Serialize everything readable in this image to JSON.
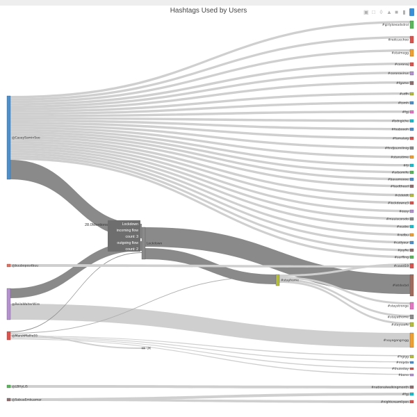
{
  "title": "Hashtags Used by Users",
  "modebar": {
    "icons": [
      "camera-icon",
      "zoom-icon",
      "pan-icon",
      "box-select-icon",
      "lasso-icon",
      "home-icon",
      "plotly-logo-icon"
    ]
  },
  "tooltip": {
    "name": "Lockdown",
    "incoming": "incoming flow count: 3",
    "outgoing": "outgoing flow count: 2",
    "tag": "28.0Mentions"
  },
  "chart_data": {
    "type": "sankey",
    "title": "Hashtags Used by Users",
    "left_nodes": [
      {
        "label": "@CaseySaminSoo",
        "color": "#4f8fca",
        "y0": 138,
        "y1": 258
      },
      {
        "label": "@buuboposdbuu",
        "color": "#e07060",
        "y0": 380,
        "y1": 384
      },
      {
        "label": "@ReilaWalterWire",
        "color": "#b392cf",
        "y0": 415,
        "y1": 460
      },
      {
        "label": "@MarshMallie55",
        "color": "#d9534f",
        "y0": 477,
        "y1": 489
      },
      {
        "label": "@LBHyLiS",
        "color": "#5bb75b",
        "y0": 554,
        "y1": 558
      },
      {
        "label": "@SabuaEmkuamar",
        "color": "#8e6e6e",
        "y0": 573,
        "y1": 577
      }
    ],
    "middle_nodes": [
      {
        "label": "Lockdown",
        "color": "#8a8a8a",
        "x": 204,
        "y0": 327,
        "y1": 373
      },
      {
        "label": "#stayhome",
        "color": "#b5bd3c",
        "x": 397,
        "y0": 395,
        "y1": 411
      },
      {
        "label": "UK",
        "color": "#999999",
        "x": 204,
        "y0": 500,
        "y1": 502
      }
    ],
    "right_nodes": [
      {
        "label": "#girlykeeadsdrol",
        "color": "#5bb75b",
        "y0": 30,
        "y1": 41
      },
      {
        "label": "#redcucchoo",
        "color": "#d9534f",
        "y0": 52,
        "y1": 62
      },
      {
        "label": "#staimegg",
        "color": "#f0a030",
        "y0": 71,
        "y1": 81
      },
      {
        "label": "#coronaj",
        "color": "#d9534f",
        "y0": 90,
        "y1": 95
      },
      {
        "label": "#coronavirus",
        "color": "#b392cf",
        "y0": 103,
        "y1": 108
      },
      {
        "label": "#fgame",
        "color": "#8e6e6e",
        "y0": 117,
        "y1": 122
      },
      {
        "label": "#sdfh",
        "color": "#b5bd3c",
        "y0": 133,
        "y1": 137
      },
      {
        "label": "#tomh",
        "color": "#4f8fca",
        "y0": 146,
        "y1": 150
      },
      {
        "label": "#fgj",
        "color": "#e377c2",
        "y0": 159,
        "y1": 163
      },
      {
        "label": "#bdngiche",
        "color": "#17becf",
        "y0": 172,
        "y1": 176
      },
      {
        "label": "#foaboooh",
        "color": "#4f8fca",
        "y0": 184,
        "y1": 188
      },
      {
        "label": "#famalaig",
        "color": "#d9534f",
        "y0": 197,
        "y1": 201
      },
      {
        "label": "#findjournilinig",
        "color": "#8c8c8c",
        "y0": 211,
        "y1": 215
      },
      {
        "label": "#stanstime",
        "color": "#f0a030",
        "y0": 224,
        "y1": 228
      },
      {
        "label": "#fji",
        "color": "#17becf",
        "y0": 236,
        "y1": 240
      },
      {
        "label": "#adsomife",
        "color": "#5bb75b",
        "y0": 246,
        "y1": 250
      },
      {
        "label": "#bavamoooe",
        "color": "#4f8fca",
        "y0": 256,
        "y1": 260
      },
      {
        "label": "#fasdtheed",
        "color": "#8e6e6e",
        "y0": 266,
        "y1": 270
      },
      {
        "label": "#ctdotdt",
        "color": "#b5bd3c",
        "y0": 279,
        "y1": 283
      },
      {
        "label": "#lockdownz3",
        "color": "#d9534f",
        "y0": 290,
        "y1": 294
      },
      {
        "label": "#ossy",
        "color": "#b392cf",
        "y0": 302,
        "y1": 306
      },
      {
        "label": "#muuiscorsdo",
        "color": "#8c8c8c",
        "y0": 313,
        "y1": 317
      },
      {
        "label": "#ousbe",
        "color": "#17becf",
        "y0": 324,
        "y1": 328
      },
      {
        "label": "#redbu",
        "color": "#f0a030",
        "y0": 336,
        "y1": 340
      },
      {
        "label": "#cstlyour",
        "color": "#4f8fca",
        "y0": 347,
        "y1": 351
      },
      {
        "label": "#joyfie",
        "color": "#8e6e6e",
        "y0": 358,
        "y1": 362
      },
      {
        "label": "#surfling",
        "color": "#5bb75b",
        "y0": 368,
        "y1": 372
      },
      {
        "label": "#covid19",
        "color": "#d9534f",
        "y0": 379,
        "y1": 386
      },
      {
        "label": "#lotdocbd",
        "color": "#a06b5c",
        "y0": 395,
        "y1": 426
      },
      {
        "label": "#staystronge",
        "color": "#e377c2",
        "y0": 435,
        "y1": 445
      },
      {
        "label": "#stayathome",
        "color": "#8c8c8c",
        "y0": 453,
        "y1": 459
      },
      {
        "label": "#stayssafe",
        "color": "#b5bd3c",
        "y0": 464,
        "y1": 470
      },
      {
        "label": "#noyegangrngg",
        "color": "#f0a030",
        "y0": 479,
        "y1": 500
      },
      {
        "label": "#hgigg",
        "color": "#b5bd3c",
        "y0": 511,
        "y1": 515
      },
      {
        "label": "#rnipda",
        "color": "#4f8fca",
        "y0": 520,
        "y1": 523
      },
      {
        "label": "#thuisstay",
        "color": "#d9534f",
        "y0": 529,
        "y1": 532
      },
      {
        "label": "#bono",
        "color": "#b392cf",
        "y0": 538,
        "y1": 541
      },
      {
        "label": "#nationalwalkingmonth",
        "color": "#8e6e6e",
        "y0": 555,
        "y1": 559
      },
      {
        "label": "#fgj",
        "color": "#17becf",
        "y0": 565,
        "y1": 569
      },
      {
        "label": "#nightcreamliyen",
        "color": "#d9534f",
        "y0": 576,
        "y1": 580
      }
    ]
  }
}
